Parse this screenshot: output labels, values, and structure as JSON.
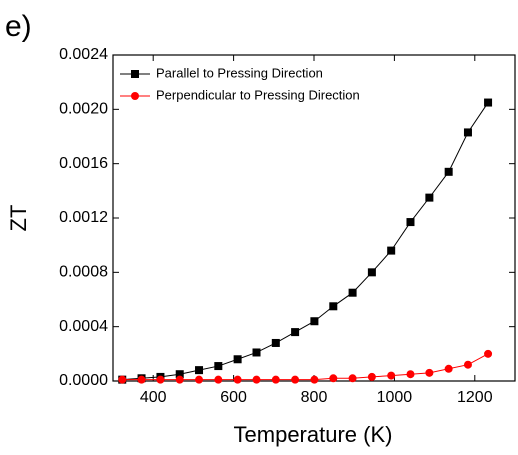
{
  "chart_data": {
    "type": "line",
    "panel_label": "e)",
    "x_label": "Temperature (K)",
    "y_label": "ZT",
    "x": [
      323,
      371,
      418,
      466,
      514,
      562,
      610,
      657,
      705,
      753,
      801,
      848,
      896,
      944,
      992,
      1040,
      1087,
      1135,
      1183,
      1233
    ],
    "series": [
      {
        "name": "Parallel to Pressing Direction",
        "color": "#000000",
        "marker": "square",
        "values": [
          1e-05,
          2e-05,
          3e-05,
          5e-05,
          8e-05,
          0.00011,
          0.00016,
          0.00021,
          0.00028,
          0.00036,
          0.00044,
          0.00055,
          0.00065,
          0.0008,
          0.00096,
          0.00117,
          0.00135,
          0.00154,
          0.00183,
          0.00205
        ]
      },
      {
        "name": "Perpendicular to Pressing Direction",
        "color": "#ff0000",
        "marker": "circle",
        "values": [
          1e-05,
          1e-05,
          1e-05,
          1e-05,
          1e-05,
          1e-05,
          1e-05,
          1e-05,
          1e-05,
          1e-05,
          1e-05,
          2e-05,
          2e-05,
          3e-05,
          4e-05,
          5e-05,
          6e-05,
          9e-05,
          0.00012,
          0.0002
        ]
      }
    ],
    "xlim": [
      300,
      1300
    ],
    "xticks": [
      400,
      600,
      800,
      1000,
      1200
    ],
    "ylim": [
      0,
      0.0024
    ],
    "yticks": [
      {
        "value": 0,
        "label": "0.0000"
      },
      {
        "value": 0.0004,
        "label": "0.0004"
      },
      {
        "value": 0.0008,
        "label": "0.0008"
      },
      {
        "value": 0.0012,
        "label": "0.0012"
      },
      {
        "value": 0.0016,
        "label": "0.0016"
      },
      {
        "value": 0.002,
        "label": "0.0020"
      },
      {
        "value": 0.0024,
        "label": "0.0024"
      }
    ],
    "legend": "upper-left"
  }
}
